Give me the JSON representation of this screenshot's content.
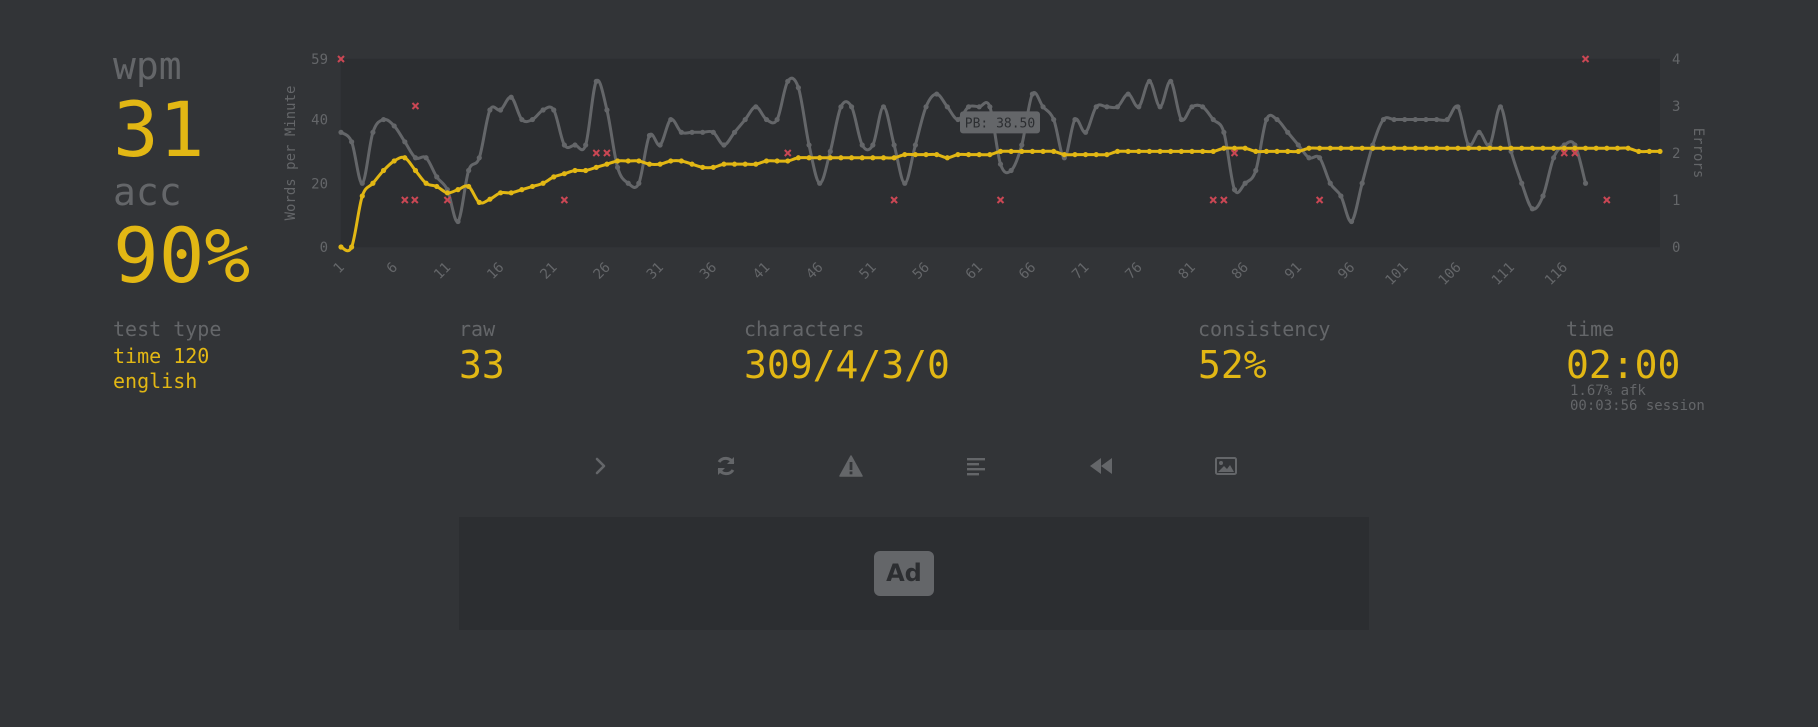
{
  "result": {
    "wpm_label": "wpm",
    "wpm_value": "31",
    "acc_label": "acc",
    "acc_value": "90%"
  },
  "stats": {
    "test_type_label": "test type",
    "test_type_value_1": "time 120",
    "test_type_value_2": "english",
    "raw_label": "raw",
    "raw_value": "33",
    "characters_label": "characters",
    "characters_value": "309/4/3/0",
    "consistency_label": "consistency",
    "consistency_value": "52%",
    "time_label": "time",
    "time_value": "02:00",
    "afk_text": "1.67% afk",
    "session_text": "00:03:56 session"
  },
  "buttons": [
    {
      "name": "next-test-button",
      "icon": "chevron-right-icon"
    },
    {
      "name": "restart-test-button",
      "icon": "refresh-icon"
    },
    {
      "name": "practice-words-button",
      "icon": "warning-icon"
    },
    {
      "name": "words-history-button",
      "icon": "align-left-icon"
    },
    {
      "name": "watch-replay-button",
      "icon": "backward-icon"
    },
    {
      "name": "save-screenshot-button",
      "icon": "image-icon"
    }
  ],
  "ad": {
    "label": "Ad"
  },
  "colors": {
    "background": "#323437",
    "sub": "#646669",
    "main": "#e2b714",
    "error": "#ca4754",
    "ad_bg": "#2c2e31"
  },
  "chart_data": {
    "type": "line",
    "ylabel": "Words per Minute",
    "y2label": "Errors",
    "ylim": [
      0,
      59
    ],
    "y_ticks": [
      "0",
      "20",
      "40",
      "59"
    ],
    "y2lim": [
      0,
      4
    ],
    "y2_ticks": [
      "0",
      "1",
      "2",
      "3",
      "4"
    ],
    "x_ticks": [
      "1",
      "6",
      "11",
      "16",
      "21",
      "26",
      "31",
      "36",
      "41",
      "46",
      "51",
      "56",
      "61",
      "66",
      "71",
      "76",
      "81",
      "86",
      "91",
      "96",
      "101",
      "106",
      "111",
      "116"
    ],
    "pb_value": 38.5,
    "pb_label": "PB: 38.50",
    "series": [
      {
        "color": "#e2b714",
        "values": [
          0,
          0,
          16,
          20,
          24,
          27,
          28,
          24,
          20,
          19,
          17,
          18,
          19,
          14,
          15,
          17,
          17,
          18,
          19,
          20,
          22,
          23,
          24,
          24,
          25,
          26,
          27,
          27,
          27,
          26,
          26,
          27,
          27,
          26,
          25,
          25,
          26,
          26,
          26,
          26,
          27,
          27,
          27,
          28,
          28,
          28,
          28,
          28,
          28,
          28,
          28,
          28,
          28,
          29,
          29,
          29,
          29,
          28,
          29,
          29,
          29,
          29,
          30,
          30,
          30,
          30,
          30,
          30,
          29,
          29,
          29,
          29,
          29,
          30,
          30,
          30,
          30,
          30,
          30,
          30,
          30,
          30,
          30,
          31,
          31,
          31,
          30,
          30,
          30,
          30,
          30,
          31,
          31,
          31,
          31,
          31,
          31,
          31,
          31,
          31,
          31,
          31,
          31,
          31,
          31,
          31,
          31,
          31,
          31,
          31,
          31,
          31,
          31,
          31,
          31,
          31,
          31,
          31,
          31,
          31,
          31,
          31,
          30,
          30,
          30
        ]
      },
      {
        "color": "#646669",
        "values": [
          36,
          33,
          20,
          36,
          40,
          38,
          33,
          28,
          28,
          22,
          18,
          8,
          24,
          28,
          43,
          43,
          47,
          40,
          40,
          43,
          43,
          32,
          32,
          32,
          52,
          43,
          25,
          20,
          20,
          35,
          32,
          40,
          36,
          36,
          36,
          36,
          32,
          36,
          40,
          44,
          40,
          40,
          52,
          50,
          32,
          20,
          30,
          44,
          44,
          32,
          32,
          44,
          32,
          20,
          32,
          44,
          48,
          44,
          40,
          44,
          44,
          44,
          26,
          24,
          32,
          48,
          44,
          40,
          28,
          40,
          36,
          44,
          44,
          44,
          48,
          44,
          52,
          44,
          52,
          40,
          44,
          44,
          40,
          36,
          18,
          20,
          24,
          40,
          40,
          36,
          32,
          28,
          28,
          20,
          16,
          8,
          20,
          32,
          40,
          40,
          40,
          40,
          40,
          40,
          40,
          44,
          32,
          36,
          32,
          44,
          30,
          20,
          12,
          16,
          28,
          32,
          32,
          20
        ]
      }
    ],
    "errors": [
      {
        "x": 1,
        "value": 4
      },
      {
        "x": 8,
        "value": 3
      },
      {
        "x": 7,
        "value": 1
      },
      {
        "x": 7,
        "value": 1
      },
      {
        "x": 11,
        "value": 1
      },
      {
        "x": 22,
        "value": 1
      },
      {
        "x": 25,
        "value": 2
      },
      {
        "x": 26,
        "value": 2
      },
      {
        "x": 43,
        "value": 2
      },
      {
        "x": 53,
        "value": 1
      },
      {
        "x": 63,
        "value": 1
      },
      {
        "x": 83,
        "value": 1
      },
      {
        "x": 84,
        "value": 1
      },
      {
        "x": 85,
        "value": 2
      },
      {
        "x": 93,
        "value": 1
      },
      {
        "x": 116,
        "value": 2
      },
      {
        "x": 117,
        "value": 2
      },
      {
        "x": 118,
        "value": 4
      },
      {
        "x": 120,
        "value": 1
      }
    ]
  }
}
